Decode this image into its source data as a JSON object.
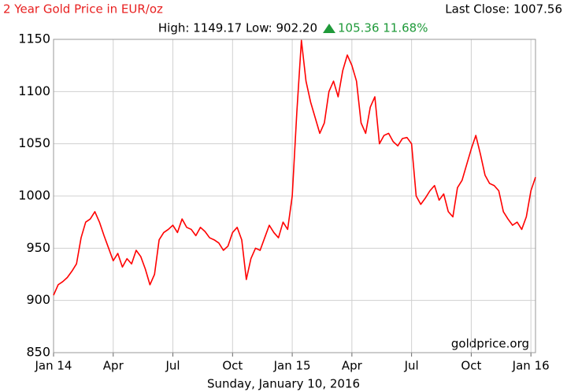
{
  "chart_data": {
    "type": "line",
    "title": "2 Year Gold Price in EUR/oz",
    "last_close": "Last Close: 1007.56",
    "subtitle": "High: 1149.17 Low: 902.20",
    "change": "105.36 11.68%",
    "watermark": "goldprice.org",
    "date": "Sunday, January 10, 2016",
    "series": [
      {
        "color": "#ff0000",
        "values": [
          905,
          915,
          918,
          922,
          928,
          935,
          960,
          975,
          978,
          985,
          975,
          962,
          950,
          938,
          945,
          932,
          940,
          935,
          948,
          942,
          930,
          915,
          925,
          958,
          965,
          968,
          972,
          965,
          978,
          970,
          968,
          962,
          970,
          966,
          960,
          958,
          955,
          948,
          952,
          965,
          970,
          958,
          920,
          940,
          950,
          948,
          960,
          972,
          965,
          960,
          975,
          968,
          1000,
          1080,
          1149,
          1110,
          1090,
          1075,
          1060,
          1070,
          1100,
          1110,
          1095,
          1120,
          1135,
          1125,
          1110,
          1070,
          1060,
          1085,
          1095,
          1050,
          1058,
          1060,
          1052,
          1048,
          1055,
          1056,
          1050,
          1000,
          992,
          998,
          1005,
          1010,
          996,
          1002,
          985,
          980,
          1008,
          1015,
          1030,
          1045,
          1058,
          1040,
          1020,
          1012,
          1010,
          1005,
          985,
          978,
          972,
          975,
          968,
          980,
          1005,
          1018
        ]
      }
    ],
    "xlim": [
      0,
      105
    ],
    "xticks": [
      {
        "value": 0,
        "label": "Jan 14"
      },
      {
        "value": 13,
        "label": "Apr"
      },
      {
        "value": 26,
        "label": "Jul"
      },
      {
        "value": 39,
        "label": "Oct"
      },
      {
        "value": 52,
        "label": "Jan 15"
      },
      {
        "value": 65,
        "label": "Apr"
      },
      {
        "value": 78,
        "label": "Jul"
      },
      {
        "value": 91,
        "label": "Oct"
      },
      {
        "value": 104,
        "label": "Jan 16"
      }
    ],
    "ylim": [
      850,
      1150
    ],
    "yticks": [
      850,
      900,
      950,
      1000,
      1050,
      1100,
      1150
    ],
    "grid": true
  }
}
